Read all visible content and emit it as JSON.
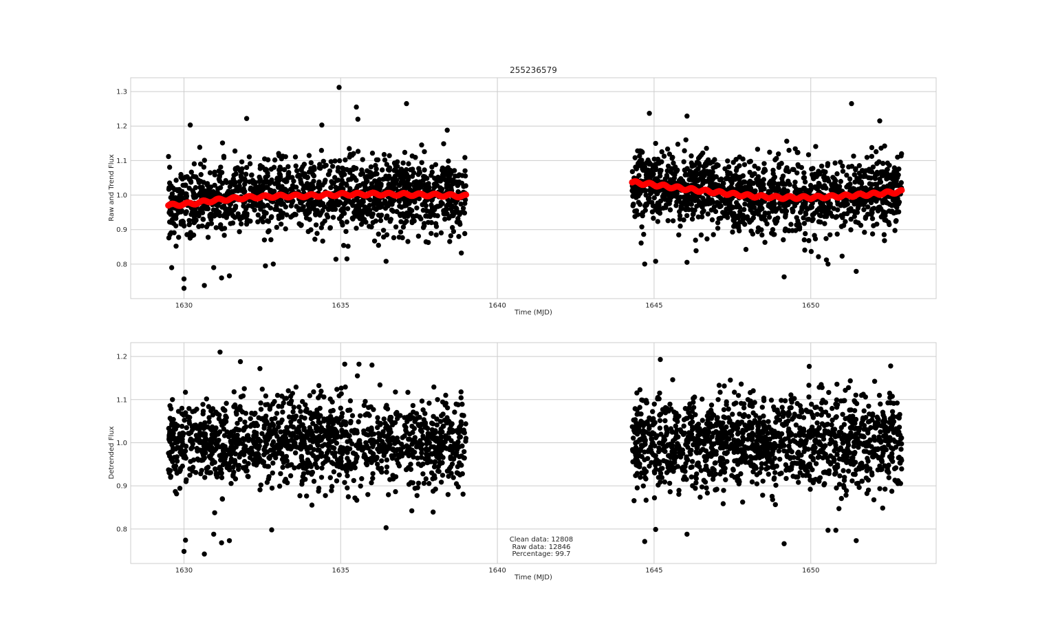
{
  "chart_data": [
    {
      "type": "scatter",
      "title": "255236579",
      "xlabel": "Time (MJD)",
      "ylabel": "Raw and Trend Flux",
      "xlim": [
        1628.3,
        1654.0
      ],
      "ylim": [
        0.7,
        1.34
      ],
      "xticks": [
        1630,
        1635,
        1640,
        1645,
        1650
      ],
      "yticks": [
        0.8,
        0.9,
        1.0,
        1.1,
        1.2,
        1.3
      ],
      "xtick_labels": [
        "1630",
        "1635",
        "1640",
        "1645",
        "1650"
      ],
      "ytick_labels": [
        "0.8",
        "0.9",
        "1.0",
        "1.1",
        "1.2",
        "1.3"
      ],
      "grid": true,
      "segments": [
        [
          1629.5,
          1639.0
        ],
        [
          1644.3,
          1652.9
        ]
      ],
      "series": [
        {
          "role": "raw",
          "color": "#000000",
          "point_count_note": "dense noise around the trend, scatter approx 0.88-1.12",
          "outliers": [
            [
              1634.95,
              1.312
            ],
            [
              1635.5,
              1.255
            ],
            [
              1637.1,
              1.265
            ],
            [
              1635.55,
              1.22
            ],
            [
              1632.0,
              1.222
            ],
            [
              1630.2,
              1.203
            ],
            [
              1634.4,
              1.203
            ],
            [
              1638.4,
              1.188
            ],
            [
              1630.0,
              0.73
            ],
            [
              1630.65,
              0.738
            ],
            [
              1630.0,
              0.757
            ],
            [
              1631.2,
              0.76
            ],
            [
              1631.45,
              0.766
            ],
            [
              1630.95,
              0.79
            ],
            [
              1632.6,
              0.795
            ],
            [
              1632.85,
              0.8
            ],
            [
              1634.85,
              0.814
            ],
            [
              1635.2,
              0.815
            ],
            [
              1636.45,
              0.808
            ],
            [
              1638.85,
              0.832
            ],
            [
              1651.3,
              1.265
            ],
            [
              1652.2,
              1.215
            ],
            [
              1644.85,
              1.237
            ],
            [
              1646.05,
              1.229
            ],
            [
              1649.15,
              0.763
            ],
            [
              1651.45,
              0.779
            ],
            [
              1644.7,
              0.8
            ],
            [
              1645.05,
              0.808
            ],
            [
              1646.05,
              0.805
            ],
            [
              1650.55,
              0.8
            ],
            [
              1650.5,
              0.812
            ],
            [
              1651.0,
              0.823
            ]
          ]
        },
        {
          "role": "trend",
          "color": "#ff0000",
          "x": [
            1629.5,
            1630.2,
            1631.0,
            1632.0,
            1633.0,
            1634.0,
            1635.0,
            1636.0,
            1637.0,
            1638.0,
            1639.0,
            1644.3,
            1645.0,
            1646.0,
            1647.0,
            1648.0,
            1649.0,
            1650.0,
            1651.0,
            1652.0,
            1652.9
          ],
          "y": [
            0.97,
            0.975,
            0.985,
            0.993,
            0.997,
            0.998,
            1.002,
            1.003,
            1.002,
            1.0,
            0.997,
            1.037,
            1.03,
            1.018,
            1.008,
            0.998,
            0.993,
            0.993,
            0.997,
            1.003,
            1.01
          ]
        }
      ]
    },
    {
      "type": "scatter",
      "title": "",
      "xlabel": "Time (MJD)",
      "ylabel": "Detrended Flux",
      "xlim": [
        1628.3,
        1654.0
      ],
      "ylim": [
        0.72,
        1.232
      ],
      "xticks": [
        1630,
        1635,
        1640,
        1645,
        1650
      ],
      "yticks": [
        0.8,
        0.9,
        1.0,
        1.1,
        1.2
      ],
      "xtick_labels": [
        "1630",
        "1635",
        "1640",
        "1645",
        "1650"
      ],
      "ytick_labels": [
        "0.8",
        "0.9",
        "1.0",
        "1.1",
        "1.2"
      ],
      "grid": true,
      "segments": [
        [
          1629.5,
          1639.0
        ],
        [
          1644.3,
          1652.9
        ]
      ],
      "series": [
        {
          "role": "detrended",
          "color": "#000000",
          "point_count_note": "dense noise around 1.0, scatter approx 0.88-1.12",
          "outliers": [
            [
              1631.15,
              1.21
            ],
            [
              1631.8,
              1.188
            ],
            [
              1636.0,
              1.18
            ],
            [
              1645.2,
              1.193
            ],
            [
              1649.95,
              1.177
            ],
            [
              1652.55,
              1.178
            ],
            [
              1630.0,
              0.748
            ],
            [
              1630.65,
              0.742
            ],
            [
              1630.05,
              0.774
            ],
            [
              1631.2,
              0.768
            ],
            [
              1631.45,
              0.773
            ],
            [
              1630.95,
              0.788
            ],
            [
              1632.8,
              0.798
            ],
            [
              1636.45,
              0.803
            ],
            [
              1649.15,
              0.766
            ],
            [
              1651.45,
              0.773
            ],
            [
              1644.7,
              0.771
            ],
            [
              1646.05,
              0.788
            ],
            [
              1650.55,
              0.797
            ],
            [
              1650.8,
              0.797
            ],
            [
              1645.05,
              0.799
            ]
          ]
        }
      ],
      "annotation": [
        "Clean data: 12808",
        "Raw data: 12846",
        "Percentage: 99.7"
      ]
    }
  ]
}
